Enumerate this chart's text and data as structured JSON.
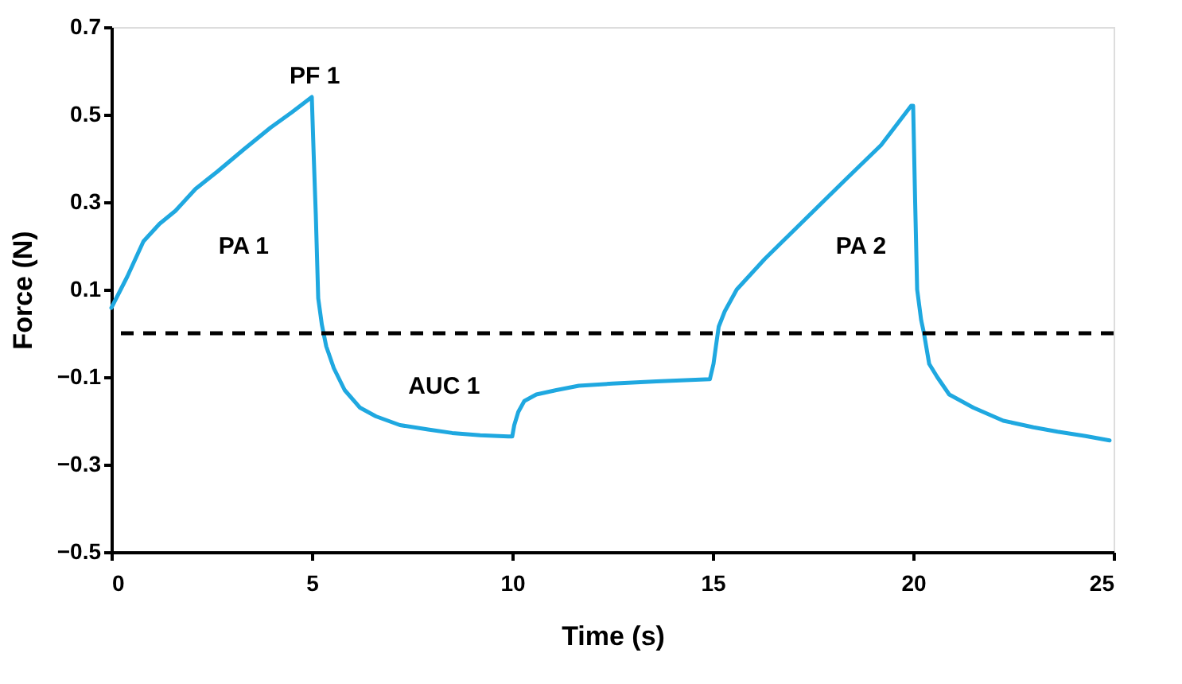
{
  "chart_data": {
    "type": "line",
    "xlabel": "Time (s)",
    "ylabel": "Force (N)",
    "x": [
      0,
      0.4,
      0.8,
      1.2,
      1.6,
      2.1,
      2.65,
      3.3,
      3.97,
      4.5,
      5,
      5.05,
      5.1,
      5.16,
      5.25,
      5.36,
      5.55,
      5.82,
      6.2,
      6.6,
      7.2,
      7.9,
      8.5,
      9.2,
      9.9,
      10,
      10.05,
      10.15,
      10.3,
      10.6,
      11.1,
      11.66,
      12.5,
      13.6,
      14.93,
      15.02,
      15.08,
      15.15,
      15.3,
      15.6,
      16.3,
      17.3,
      18.3,
      19.2,
      19.95,
      20,
      20.05,
      20.1,
      20.2,
      20.27,
      20.4,
      20.6,
      20.9,
      21.5,
      22.25,
      23,
      23.6,
      24.3,
      24.9
    ],
    "series": [
      {
        "color": "#1fa8e0",
        "values": [
          0.058,
          0.13,
          0.21,
          0.25,
          0.28,
          0.33,
          0.37,
          0.42,
          0.47,
          0.505,
          0.54,
          0.4,
          0.27,
          0.08,
          0.02,
          -0.03,
          -0.08,
          -0.13,
          -0.17,
          -0.19,
          -0.21,
          -0.22,
          -0.228,
          -0.233,
          -0.236,
          -0.236,
          -0.21,
          -0.18,
          -0.155,
          -0.14,
          -0.13,
          -0.12,
          -0.115,
          -0.11,
          -0.105,
          -0.07,
          -0.03,
          0.015,
          0.05,
          0.1,
          0.17,
          0.26,
          0.35,
          0.43,
          0.52,
          0.52,
          0.3,
          0.1,
          0.03,
          0.0,
          -0.07,
          -0.1,
          -0.14,
          -0.17,
          -0.2,
          -0.215,
          -0.225,
          -0.235,
          -0.245
        ]
      }
    ],
    "xlim": [
      0,
      25
    ],
    "xticks": [
      0,
      5,
      10,
      15,
      20,
      25
    ],
    "ylim": [
      -0.5,
      0.7
    ],
    "yticks": [
      {
        "value": -0.5,
        "label": "−0.5"
      },
      {
        "value": -0.3,
        "label": "−0.3"
      },
      {
        "value": -0.1,
        "label": "−0.1"
      },
      0.1,
      0.3,
      0.5,
      0.7
    ],
    "ref_lines": [
      {
        "axis": "y",
        "value": 0,
        "color": "#000000",
        "line_style": "dashed"
      }
    ],
    "annotations": [
      "PF 1",
      "PA 1",
      "AUC 1",
      "PA 2"
    ],
    "grid": false,
    "marker": "none",
    "line_style": "solid"
  }
}
